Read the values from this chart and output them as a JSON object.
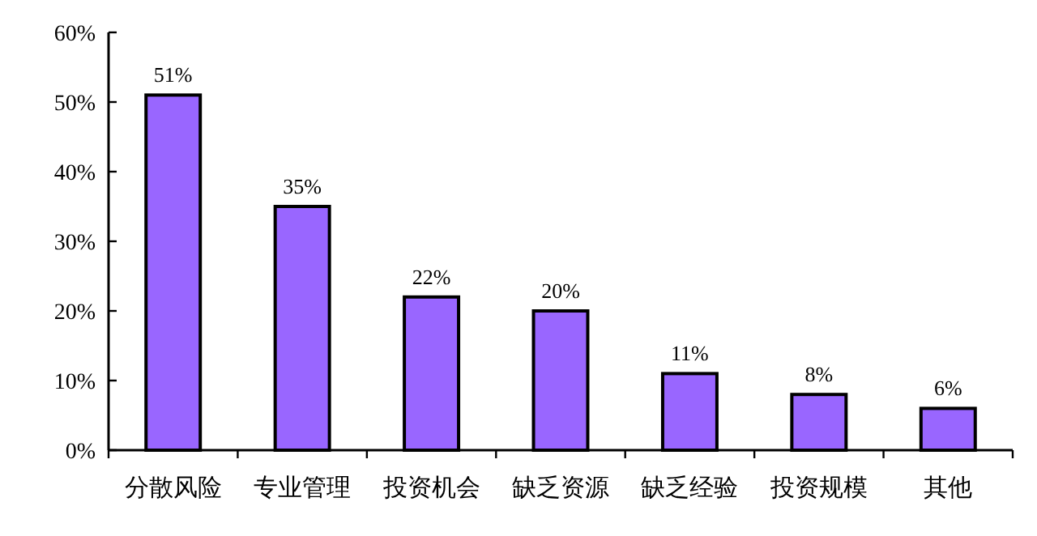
{
  "chart_data": {
    "type": "bar",
    "categories": [
      "分散风险",
      "专业管理",
      "投资机会",
      "缺乏资源",
      "缺乏经验",
      "投资规模",
      "其他"
    ],
    "values": [
      51,
      35,
      22,
      20,
      11,
      8,
      6
    ],
    "value_labels": [
      "51%",
      "35%",
      "22%",
      "20%",
      "11%",
      "8%",
      "6%"
    ],
    "color": "#9966ff",
    "ylim": [
      0,
      60
    ],
    "yticks": [
      {
        "value": 0,
        "label": "0%"
      },
      {
        "value": 10,
        "label": "10%"
      },
      {
        "value": 20,
        "label": "20%"
      },
      {
        "value": 30,
        "label": "30%"
      },
      {
        "value": 40,
        "label": "40%"
      },
      {
        "value": 50,
        "label": "50%"
      },
      {
        "value": 60,
        "label": "60%"
      }
    ],
    "grid": false,
    "legend": false
  }
}
